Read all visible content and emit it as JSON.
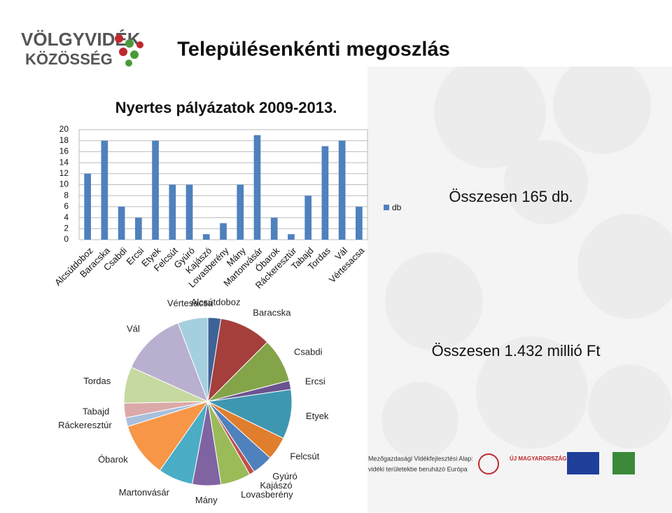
{
  "slide": {
    "title": "Településenkénti megoszlás",
    "logo_top": "VÖLGYVIDÉK",
    "logo_bottom": "KÖZÖSSÉG",
    "total_count": "Összesen 165 db.",
    "total_amount": "Összesen 1.432 millió Ft",
    "footer_fund": "Mezőgazdasági Vidékfejlesztési Alap:",
    "footer_fund2": "vidéki területekbe beruházó Európa",
    "footer_brand": "ÚJ MAGYARORSZÁG"
  },
  "chart_data": [
    {
      "type": "bar",
      "title": "Nyertes pályázatok 2009-2013.",
      "categories": [
        "Alcsútdoboz",
        "Baracska",
        "Csabdi",
        "Ercsi",
        "Etyek",
        "Felcsút",
        "Gyúró",
        "Kajászó",
        "Lovasberény",
        "Mány",
        "Martonvásár",
        "Óbarok",
        "Ráckeresztúr",
        "Tabajd",
        "Tordas",
        "Vál",
        "Vértesacsa"
      ],
      "series": [
        {
          "name": "db",
          "color": "#4f81bd",
          "values": [
            12,
            18,
            6,
            4,
            18,
            10,
            10,
            1,
            3,
            10,
            19,
            4,
            1,
            8,
            17,
            18,
            6
          ]
        }
      ],
      "ylim": [
        0,
        20
      ],
      "yticks": [
        0,
        2,
        4,
        6,
        8,
        10,
        12,
        14,
        16,
        18,
        20
      ],
      "legend": "right"
    },
    {
      "type": "pie",
      "categories": [
        "Alcsútdoboz",
        "Baracska",
        "Csabdi",
        "Ercsi",
        "Etyek",
        "Felcsút",
        "Gyúró",
        "Kajászó",
        "Lovasberény",
        "Mány",
        "Martonvásár",
        "Óbarok",
        "Ráckeresztúr",
        "Tabajd",
        "Tordas",
        "Vál",
        "Vértesacsa"
      ],
      "values": [
        2.5,
        10,
        8.5,
        1.7,
        9.5,
        4.5,
        4,
        1,
        5.8,
        5.5,
        6.7,
        10.5,
        1.7,
        2.8,
        7,
        12.5,
        5.8
      ],
      "colors": [
        "#3e6396",
        "#a43f3c",
        "#84a44a",
        "#6b5390",
        "#3e97b0",
        "#e07e2e",
        "#4f81bd",
        "#c0504d",
        "#9bbb59",
        "#8064a2",
        "#4bacc6",
        "#f79646",
        "#a7c0de",
        "#dba9a8",
        "#c6d9a0",
        "#b9afcf",
        "#a5cfdf"
      ]
    }
  ]
}
